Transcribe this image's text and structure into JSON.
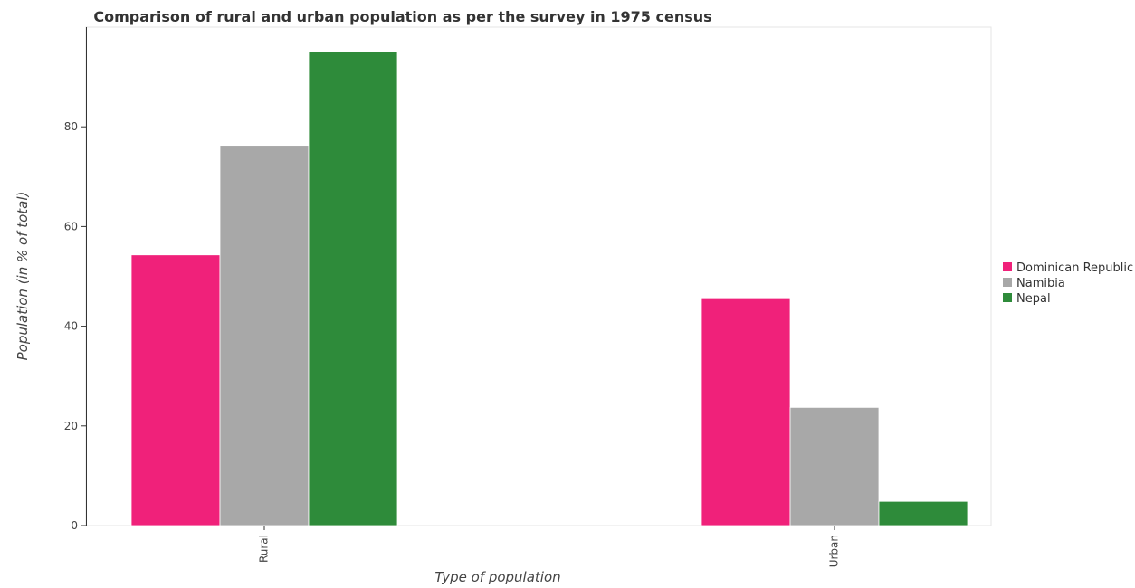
{
  "chart_data": {
    "type": "bar",
    "title": "Comparison of rural and urban population as per the survey in 1975 census",
    "xlabel": "Type of population",
    "ylabel": "Population (in % of total)",
    "categories": [
      "Rural",
      "Urban"
    ],
    "series": [
      {
        "name": "Dominican Republic",
        "color": "#f0217a",
        "values": [
          54.31,
          45.69
        ]
      },
      {
        "name": "Namibia",
        "color": "#a8a8a8",
        "values": [
          76.29,
          23.71
        ]
      },
      {
        "name": "Nepal",
        "color": "#2e8b3a",
        "values": [
          95.14,
          4.86
        ]
      }
    ],
    "yticks": [
      "0",
      "20",
      "40",
      "60",
      "80"
    ],
    "ylim": [
      0,
      100
    ],
    "grid": false,
    "legend_position": "right"
  }
}
